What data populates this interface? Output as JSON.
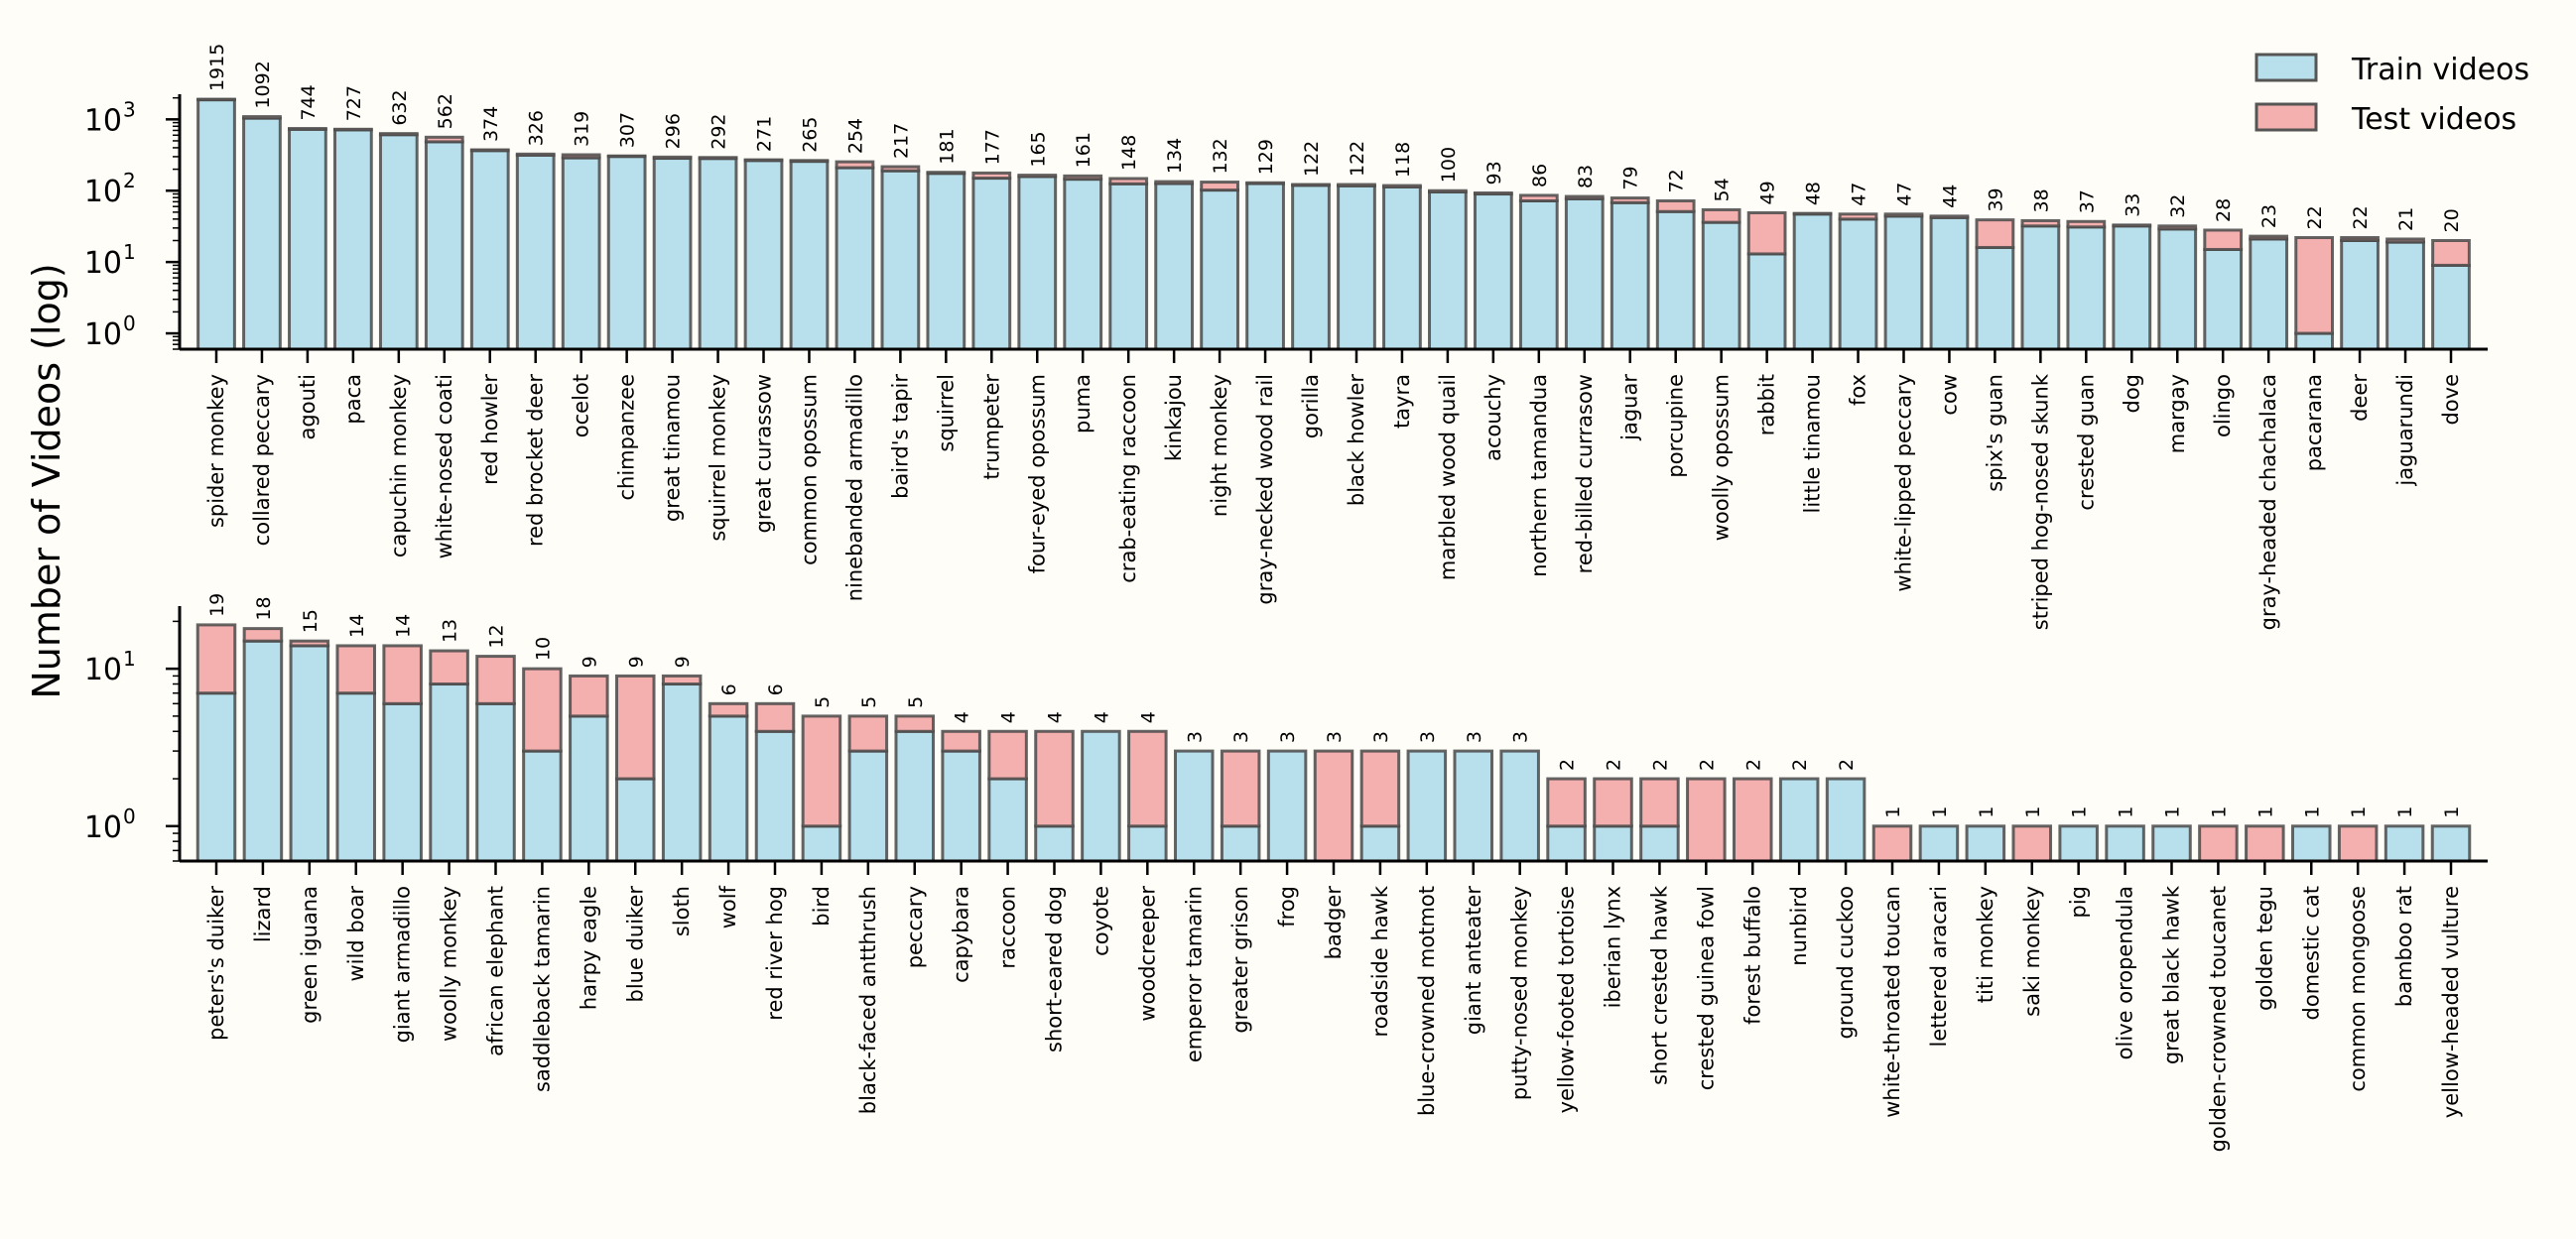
{
  "chart_data": {
    "type": "bar",
    "stacked": true,
    "yscale": "log",
    "ylabel": "Number of Videos (log)",
    "legend": {
      "position": "top-right",
      "entries": [
        {
          "name": "Train videos",
          "color": "#add8e6"
        },
        {
          "name": "Test videos",
          "color": "#f4a3a3"
        }
      ]
    },
    "colors": {
      "train": "#b7dfec",
      "test": "#f4afaf",
      "edge": "#4a4a4a",
      "background": "#fffdf8"
    },
    "panels": [
      {
        "name": "top",
        "ylim": [
          0.6,
          2250
        ],
        "yticks": [
          {
            "value": 1,
            "label": "10",
            "exp": "0"
          },
          {
            "value": 10,
            "label": "10",
            "exp": "1"
          },
          {
            "value": 100,
            "label": "10",
            "exp": "2"
          },
          {
            "value": 1000,
            "label": "10",
            "exp": "3"
          }
        ],
        "categories": [
          "spider monkey",
          "collared peccary",
          "agouti",
          "paca",
          "capuchin monkey",
          "white-nosed coati",
          "red howler",
          "red brocket deer",
          "ocelot",
          "chimpanzee",
          "great tinamou",
          "squirrel monkey",
          "great curassow",
          "common opossum",
          "ninebanded armadillo",
          "baird's tapir",
          "squirrel",
          "trumpeter",
          "four-eyed opossum",
          "puma",
          "crab-eating raccoon",
          "kinkajou",
          "night monkey",
          "gray-necked wood rail",
          "gorilla",
          "black howler",
          "tayra",
          "marbled wood quail",
          "acouchy",
          "northern tamandua",
          "red-billed currasow",
          "jaguar",
          "porcupine",
          "woolly opossum",
          "rabbit",
          "little tinamou",
          "fox",
          "white-lipped peccary",
          "cow",
          "spix's guan",
          "striped hog-nosed skunk",
          "crested guan",
          "dog",
          "margay",
          "olingo",
          "gray-headed chachalaca",
          "pacarana",
          "deer",
          "jaguarundi",
          "dove"
        ],
        "totals": [
          1915,
          1092,
          744,
          727,
          632,
          562,
          374,
          326,
          319,
          307,
          296,
          292,
          271,
          265,
          254,
          217,
          181,
          177,
          165,
          161,
          148,
          134,
          132,
          129,
          122,
          122,
          118,
          100,
          93,
          86,
          83,
          79,
          72,
          54,
          49,
          48,
          47,
          47,
          44,
          39,
          38,
          37,
          33,
          32,
          28,
          23,
          22,
          22,
          21,
          20
        ],
        "train": [
          1880,
          1040,
          725,
          712,
          610,
          485,
          365,
          315,
          289,
          302,
          285,
          283,
          265,
          258,
          210,
          190,
          175,
          150,
          158,
          145,
          125,
          126,
          102,
          126,
          119,
          117,
          113,
          96,
          90,
          72,
          77,
          68,
          51,
          36,
          13,
          47,
          40,
          44,
          42,
          16,
          32,
          31,
          32,
          29,
          15,
          21,
          1,
          20,
          19,
          9
        ],
        "test": [
          35,
          52,
          19,
          15,
          22,
          77,
          9,
          11,
          30,
          5,
          11,
          9,
          6,
          7,
          44,
          27,
          6,
          27,
          7,
          16,
          23,
          8,
          30,
          3,
          3,
          5,
          5,
          4,
          3,
          14,
          6,
          11,
          21,
          18,
          36,
          1,
          7,
          3,
          2,
          23,
          6,
          6,
          1,
          3,
          13,
          2,
          21,
          2,
          2,
          11
        ]
      },
      {
        "name": "bottom",
        "ylim": [
          0.6,
          25
        ],
        "yticks": [
          {
            "value": 1,
            "label": "10",
            "exp": "0"
          },
          {
            "value": 10,
            "label": "10",
            "exp": "1"
          }
        ],
        "categories": [
          "peters's duiker",
          "lizard",
          "green iguana",
          "wild boar",
          "giant armadillo",
          "woolly monkey",
          "african elephant",
          "saddleback tamarin",
          "harpy eagle",
          "blue duiker",
          "sloth",
          "wolf",
          "red river hog",
          "bird",
          "black-faced antthrush",
          "peccary",
          "capybara",
          "raccoon",
          "short-eared dog",
          "coyote",
          "woodcreeper",
          "emperor tamarin",
          "greater grison",
          "frog",
          "badger",
          "roadside hawk",
          "blue-crowned motmot",
          "giant anteater",
          "putty-nosed monkey",
          "yellow-footed tortoise",
          "iberian lynx",
          "short crested hawk",
          "crested guinea fowl",
          "forest buffalo",
          "nunbird",
          "ground cuckoo",
          "white-throated toucan",
          "lettered aracari",
          "titi monkey",
          "saki monkey",
          "pig",
          "olive oropendula",
          "great black hawk",
          "golden-crowned toucanet",
          "golden tegu",
          "domestic cat",
          "common mongoose",
          "bamboo rat",
          "yellow-headed vulture"
        ],
        "totals": [
          19,
          18,
          15,
          14,
          14,
          13,
          12,
          10,
          9,
          9,
          9,
          6,
          6,
          5,
          5,
          5,
          4,
          4,
          4,
          4,
          4,
          3,
          3,
          3,
          3,
          3,
          3,
          3,
          3,
          2,
          2,
          2,
          2,
          2,
          2,
          2,
          1,
          1,
          1,
          1,
          1,
          1,
          1,
          1,
          1,
          1,
          1,
          1,
          1
        ],
        "train": [
          7,
          15,
          14,
          7,
          6,
          8,
          6,
          3,
          5,
          2,
          8,
          5,
          4,
          1,
          3,
          4,
          3,
          2,
          1,
          4,
          1,
          3,
          1,
          3,
          0,
          1,
          3,
          3,
          3,
          1,
          1,
          1,
          0,
          0,
          2,
          2,
          0,
          1,
          1,
          0,
          1,
          1,
          1,
          0,
          0,
          1,
          0,
          1,
          1
        ],
        "test": [
          12,
          3,
          1,
          7,
          8,
          5,
          6,
          7,
          4,
          7,
          1,
          1,
          2,
          4,
          2,
          1,
          1,
          2,
          3,
          0,
          3,
          0,
          2,
          0,
          3,
          2,
          0,
          0,
          0,
          1,
          1,
          1,
          2,
          2,
          0,
          0,
          1,
          0,
          0,
          1,
          0,
          0,
          0,
          1,
          1,
          0,
          1,
          0,
          0
        ]
      }
    ]
  }
}
